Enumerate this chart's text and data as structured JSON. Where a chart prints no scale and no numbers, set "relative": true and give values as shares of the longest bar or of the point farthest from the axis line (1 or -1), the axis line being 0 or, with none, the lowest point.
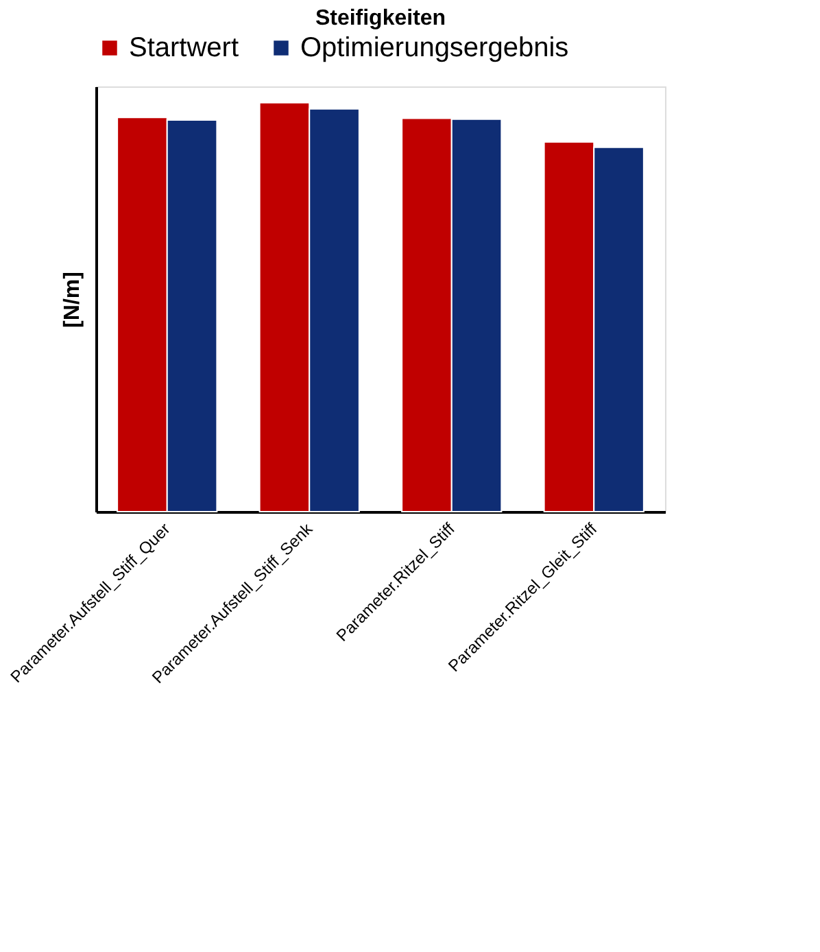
{
  "chart_data": {
    "type": "bar",
    "title": "Steifigkeiten",
    "ylabel": "[N/m]",
    "relative": true,
    "legend": "top",
    "categories": [
      "Parameter.Aufstell_Stiff_Quer",
      "Parameter.Aufstell_Stiff_Senk",
      "Parameter.Ritzel_Stiff",
      "Parameter.Ritzel_Gleit_Stiff"
    ],
    "series": [
      {
        "name": "Startwert",
        "color": "#c00000",
        "values": [
          0.964,
          1.0,
          0.962,
          0.904
        ]
      },
      {
        "name": "Optimierungsergebnis",
        "color": "#0f2d74",
        "values": [
          0.958,
          0.985,
          0.96,
          0.891
        ]
      }
    ]
  }
}
